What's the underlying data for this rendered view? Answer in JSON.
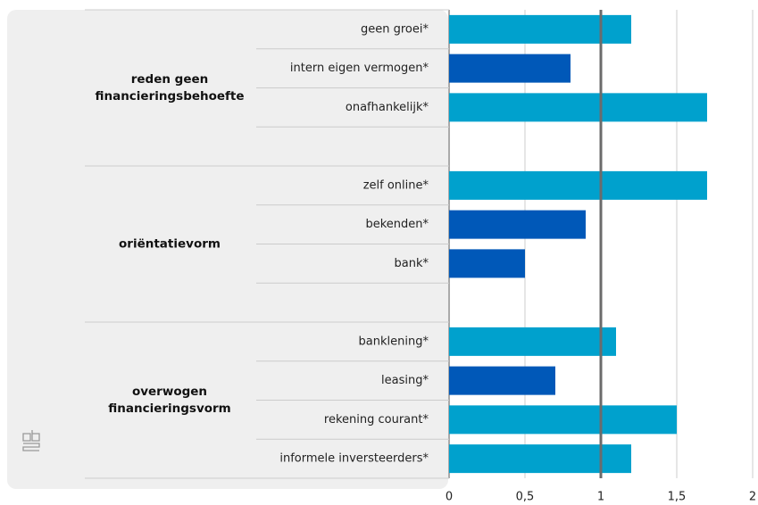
{
  "chart_data": {
    "type": "bar",
    "orientation": "horizontal",
    "groups": [
      {
        "label": "reden geen financieringsbehoefte",
        "categories": [
          "geen groei*",
          "intern eigen vermogen*",
          "onafhankelijk*",
          null
        ],
        "values": [
          1.2,
          0.8,
          1.7,
          null
        ],
        "colors": [
          "#00a1cd",
          "#0058b8",
          "#00a1cd",
          null
        ]
      },
      {
        "label": "oriëntatievorm",
        "categories": [
          "zelf online*",
          "bekenden*",
          "bank*",
          null
        ],
        "values": [
          1.7,
          0.9,
          0.5,
          null
        ],
        "colors": [
          "#00a1cd",
          "#0058b8",
          "#0058b8",
          null
        ]
      },
      {
        "label": "overwogen financieringsvorm",
        "categories": [
          "banklening*",
          "leasing*",
          "rekening courant*",
          "informele inversteerders*"
        ],
        "values": [
          1.1,
          0.7,
          1.5,
          1.2
        ],
        "colors": [
          "#00a1cd",
          "#0058b8",
          "#00a1cd",
          "#00a1cd"
        ]
      }
    ],
    "xlim": [
      0,
      2
    ],
    "xticks": [
      0,
      {
        "value": 0.5,
        "label": "0,5"
      },
      1,
      {
        "value": 1.5,
        "label": "1,5"
      },
      2
    ],
    "reference_line": 1,
    "grid": true
  }
}
